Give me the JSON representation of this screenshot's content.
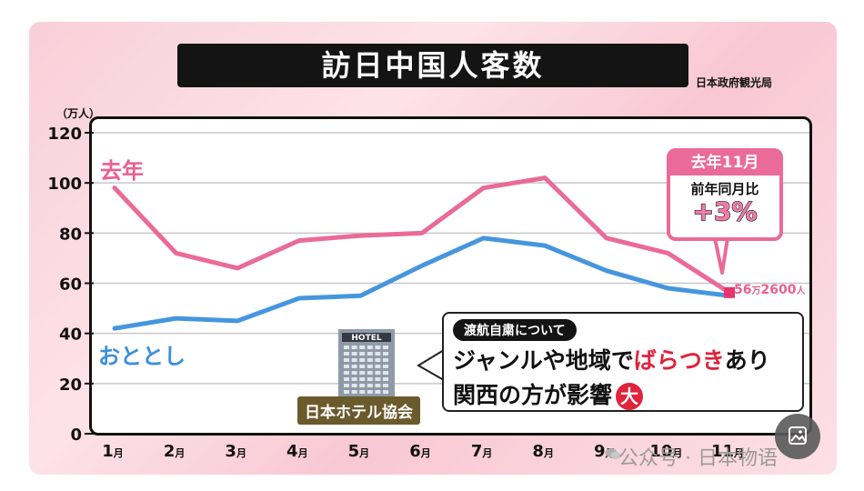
{
  "title": "訪日中国人客数",
  "source": "日本政府観光局",
  "unit": "（万人）",
  "chart_data": {
    "type": "line",
    "categories": [
      "1月",
      "2月",
      "3月",
      "4月",
      "5月",
      "6月",
      "7月",
      "8月",
      "9月",
      "10月",
      "11月"
    ],
    "ylim": [
      0,
      120
    ],
    "yticks": [
      0,
      20,
      40,
      60,
      80,
      100,
      120
    ],
    "series": [
      {
        "name": "去年",
        "color": "#ea6a98",
        "values": [
          98,
          72,
          66,
          77,
          79,
          80,
          98,
          102,
          78,
          72,
          56.26
        ]
      },
      {
        "name": "おととし",
        "color": "#4596de",
        "values": [
          42,
          46,
          45,
          54,
          55,
          67,
          78,
          75,
          65,
          58,
          55
        ]
      }
    ],
    "grid": true
  },
  "callout": {
    "head": "去年11月",
    "sub": "前年同月比",
    "value_sign": "+",
    "value_num": "3",
    "value_pct": "%"
  },
  "end_label": {
    "num1": "56",
    "man": "万",
    "num2": "2600",
    "nin": "人"
  },
  "note": {
    "tag": "渡航自粛について",
    "line1_a": "ジャンルや地域で",
    "line1_b": "ばらつき",
    "line1_c": "あり",
    "line2": "関西の方が影響",
    "badge": "大"
  },
  "hotel": {
    "sign": "HOTEL",
    "caption": "日本ホテル協会"
  },
  "watermark": "公众号 · 日本物语",
  "icons": {
    "wechat": "wechat-icon",
    "image_button": "image-icon"
  }
}
